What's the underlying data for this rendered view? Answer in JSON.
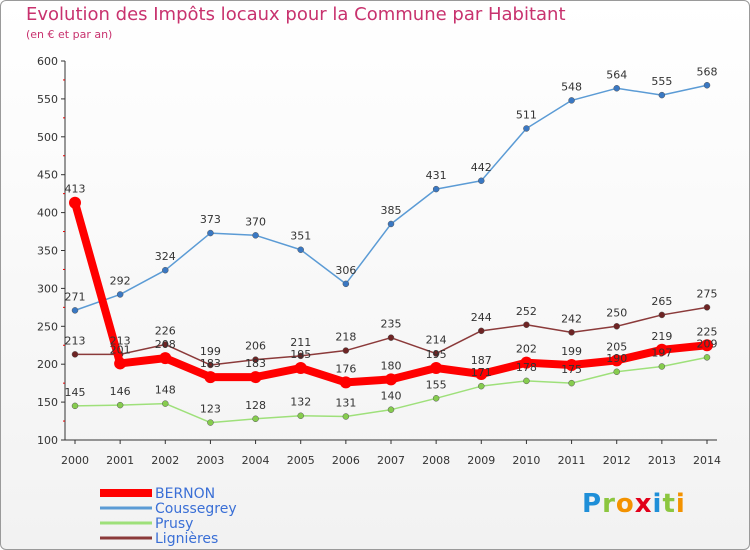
{
  "header": {
    "title": "Evolution des Impôts locaux pour la Commune par Habitant",
    "subtitle": "(en € et par an)"
  },
  "logo": {
    "letters": [
      "P",
      "r",
      "o",
      "x",
      "i",
      "t",
      "i"
    ],
    "colors": [
      "#1f8fd8",
      "#8cc63f",
      "#f39200",
      "#e2001a",
      "#1f8fd8",
      "#8cc63f",
      "#f39200"
    ]
  },
  "chart_data": {
    "type": "line",
    "x": [
      2000,
      2001,
      2002,
      2003,
      2004,
      2005,
      2006,
      2007,
      2008,
      2009,
      2010,
      2011,
      2012,
      2013,
      2014
    ],
    "ylim": [
      100,
      600
    ],
    "yticks": [
      100,
      150,
      200,
      250,
      300,
      350,
      400,
      450,
      500,
      550,
      600
    ],
    "grid": false,
    "legend_position": "bottom-left",
    "series": [
      {
        "name": "Coussegrey",
        "color": "#5b9bd5",
        "marker": "#3a78c3",
        "width": 1.5,
        "values": [
          271,
          292,
          324,
          373,
          370,
          351,
          306,
          385,
          431,
          442,
          511,
          548,
          564,
          555,
          568
        ]
      },
      {
        "name": "Prusy",
        "color": "#9ee07a",
        "marker": "#86cc4e",
        "width": 1.5,
        "values": [
          145,
          146,
          148,
          123,
          128,
          132,
          131,
          140,
          155,
          171,
          178,
          175,
          190,
          197,
          209
        ]
      },
      {
        "name": "Lignières",
        "color": "#8b3a3a",
        "marker": "#6e2424",
        "width": 1.5,
        "values": [
          213,
          213,
          226,
          199,
          206,
          211,
          218,
          235,
          214,
          244,
          252,
          242,
          250,
          265,
          275
        ]
      },
      {
        "name": "BERNON",
        "color": "#ff0000",
        "marker": "#ff0000",
        "width": 8,
        "values": [
          413,
          201,
          208,
          183,
          183,
          195,
          176,
          180,
          195,
          187,
          202,
          199,
          205,
          219,
          225
        ]
      }
    ],
    "labels": [
      {
        "series": 0,
        "text": [
          "271",
          "292",
          "324",
          "373",
          "370",
          "351",
          "306",
          "385",
          "431",
          "442",
          "511",
          "548",
          "564",
          "555",
          "568"
        ]
      },
      {
        "series": 1,
        "text": [
          "145",
          "146",
          "148",
          "123",
          "128",
          "132",
          "131",
          "140",
          "155",
          "171",
          "178",
          "175",
          "190",
          "197",
          "209"
        ]
      },
      {
        "series": 2,
        "text": [
          "213",
          "213",
          "226",
          "199",
          "206",
          "211",
          "218",
          "235",
          "214",
          "244",
          "252",
          "242",
          "250",
          "265",
          "275"
        ]
      },
      {
        "series": 3,
        "text": [
          "413",
          "201",
          "208",
          "183",
          "183",
          "195",
          "176",
          "180",
          "195",
          "187",
          "202",
          "199",
          "205",
          "219",
          "225"
        ]
      }
    ],
    "legend": [
      {
        "name": "BERNON",
        "color": "#ff0000",
        "text_color": "#3a6fd6",
        "width": 8
      },
      {
        "name": "Coussegrey",
        "color": "#5b9bd5",
        "text_color": "#3a6fd6",
        "width": 3
      },
      {
        "name": "Prusy",
        "color": "#9ee07a",
        "text_color": "#3a6fd6",
        "width": 3
      },
      {
        "name": "Lignières",
        "color": "#8b3a3a",
        "text_color": "#3a6fd6",
        "width": 3
      }
    ]
  }
}
